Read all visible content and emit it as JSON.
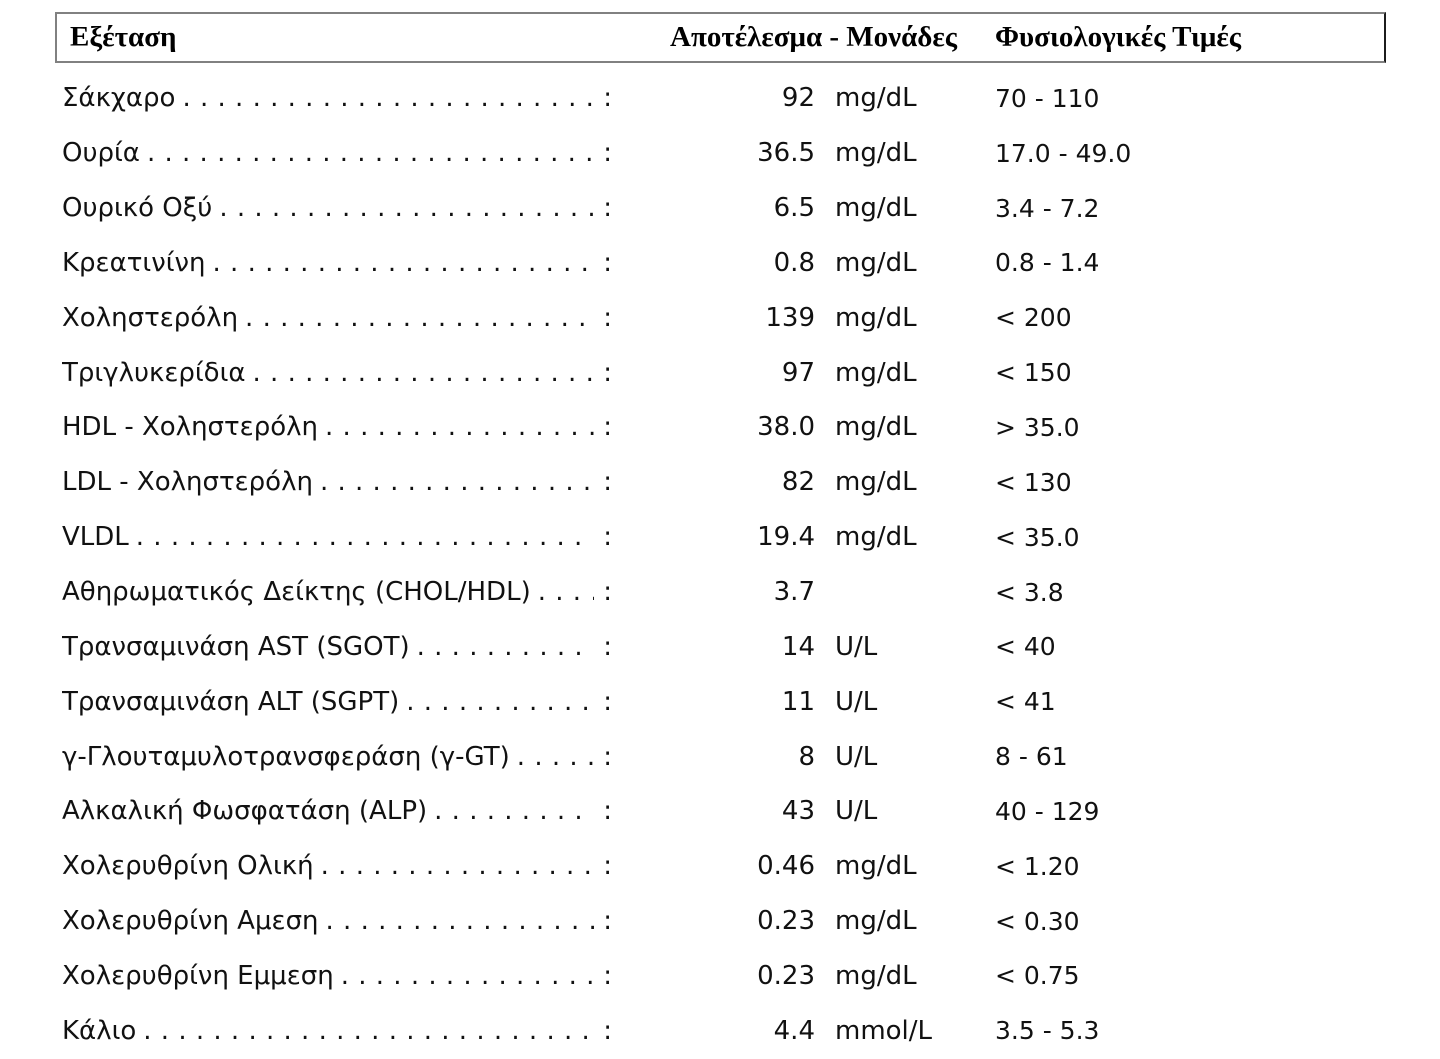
{
  "report": {
    "colors": {
      "header_border": "#818181",
      "text": "#111111"
    },
    "table": {
      "headers": {
        "test": "Εξέταση",
        "result_units": "Αποτέλεσμα - Μονάδες",
        "normal": "Φυσιολογικές Τιμές"
      },
      "colon": ":",
      "leader_char": ".",
      "rows": [
        {
          "name": "Σάκχαρο",
          "value": "92",
          "unit": "mg/dL",
          "normal": "70 - 110"
        },
        {
          "name": "Ουρία",
          "value": "36.5",
          "unit": "mg/dL",
          "normal": "17.0 - 49.0"
        },
        {
          "name": "Ουρικό Οξύ",
          "value": "6.5",
          "unit": "mg/dL",
          "normal": "3.4 - 7.2"
        },
        {
          "name": "Κρεατινίνη",
          "value": "0.8",
          "unit": "mg/dL",
          "normal": "0.8 - 1.4"
        },
        {
          "name": "Χοληστερόλη",
          "value": "139",
          "unit": "mg/dL",
          "normal": "< 200"
        },
        {
          "name": "Τριγλυκερίδια",
          "value": "97",
          "unit": "mg/dL",
          "normal": "< 150"
        },
        {
          "name": "HDL - Χοληστερόλη",
          "value": "38.0",
          "unit": "mg/dL",
          "normal": "> 35.0"
        },
        {
          "name": "LDL - Χοληστερόλη",
          "value": "82",
          "unit": "mg/dL",
          "normal": "< 130"
        },
        {
          "name": "VLDL",
          "value": "19.4",
          "unit": "mg/dL",
          "normal": "< 35.0"
        },
        {
          "name": "Αθηρωματικός Δείκτης (CHOL/HDL)",
          "value": "3.7",
          "unit": "",
          "normal": "< 3.8"
        },
        {
          "name": "Τρανσαμινάση AST (SGOT)",
          "value": "14",
          "unit": "U/L",
          "normal": "< 40"
        },
        {
          "name": "Τρανσαμινάση ALT (SGPT)",
          "value": "11",
          "unit": "U/L",
          "normal": "< 41"
        },
        {
          "name": "γ-Γλουταμυλοτρανσφεράση (γ-GT)",
          "value": "8",
          "unit": "U/L",
          "normal": "8 - 61"
        },
        {
          "name": "Αλκαλική Φωσφατάση (ALP)",
          "value": "43",
          "unit": "U/L",
          "normal": "40 - 129"
        },
        {
          "name": "Χολερυθρίνη Ολική",
          "value": "0.46",
          "unit": "mg/dL",
          "normal": "< 1.20"
        },
        {
          "name": "Χολερυθρίνη Αμεση",
          "value": "0.23",
          "unit": "mg/dL",
          "normal": "< 0.30"
        },
        {
          "name": "Χολερυθρίνη Εμμεση",
          "value": "0.23",
          "unit": "mg/dL",
          "normal": "< 0.75"
        },
        {
          "name": "Κάλιο",
          "value": "4.4",
          "unit": "mmol/L",
          "normal": "3.5 - 5.3"
        }
      ]
    }
  }
}
